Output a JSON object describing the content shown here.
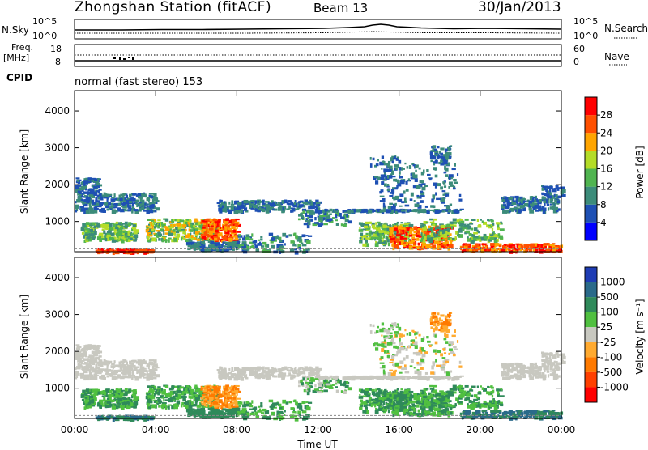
{
  "header": {
    "station": "Zhongshan Station (fitACF)",
    "beam": "Beam 13",
    "date": "30/Jan/2013"
  },
  "noise_panel": {
    "left_label": "N.Sky",
    "right_label": "N.Search",
    "left_ticks": [
      "10^5",
      "10^0"
    ],
    "right_ticks": [
      "10^5",
      "10^0"
    ]
  },
  "freq_panel": {
    "left_label_1": "Freq.",
    "left_label_2": "[MHz]",
    "right_label": "Nave",
    "left_ticks": [
      "18",
      "8"
    ],
    "right_ticks": [
      "60",
      "0"
    ]
  },
  "cpid": {
    "label": "CPID",
    "mode": "normal (fast stereo) 153"
  },
  "chart_data": [
    {
      "type": "heatmap",
      "name": "power",
      "ylabel": "Slant Range [km]",
      "yticks": [
        1000,
        2000,
        3000,
        4000
      ],
      "ylim": [
        180,
        4550
      ],
      "xlim": [
        0,
        24
      ],
      "colorbar": {
        "label": "Power [dB]",
        "ticks": [
          "4",
          "8",
          "12",
          "16",
          "20",
          "24",
          "28"
        ],
        "colors": [
          "#0000ff",
          "#1e50b4",
          "#3c8c7a",
          "#50b450",
          "#b4dc28",
          "#ffa500",
          "#ff5000",
          "#ff0000"
        ]
      }
    },
    {
      "type": "heatmap",
      "name": "velocity",
      "ylabel": "Slant Range [km]",
      "yticks": [
        1000,
        2000,
        3000,
        4000
      ],
      "ylim": [
        180,
        4550
      ],
      "xlim": [
        0,
        24
      ],
      "xticks": [
        "00:00",
        "04:00",
        "08:00",
        "12:00",
        "16:00",
        "20:00",
        "00:00"
      ],
      "xlabel": "Time UT",
      "colorbar": {
        "label": "Velocity [m s⁻¹]",
        "ticks": [
          "1000",
          "500",
          "100",
          "25",
          "-25",
          "-100",
          "-500",
          "-1000"
        ],
        "colors": [
          "#1e3cb4",
          "#2a6a8a",
          "#2f8a5a",
          "#50c040",
          "#c8c8c0",
          "#ffaa30",
          "#ff7a00",
          "#ff4000",
          "#ff0000"
        ]
      }
    }
  ]
}
